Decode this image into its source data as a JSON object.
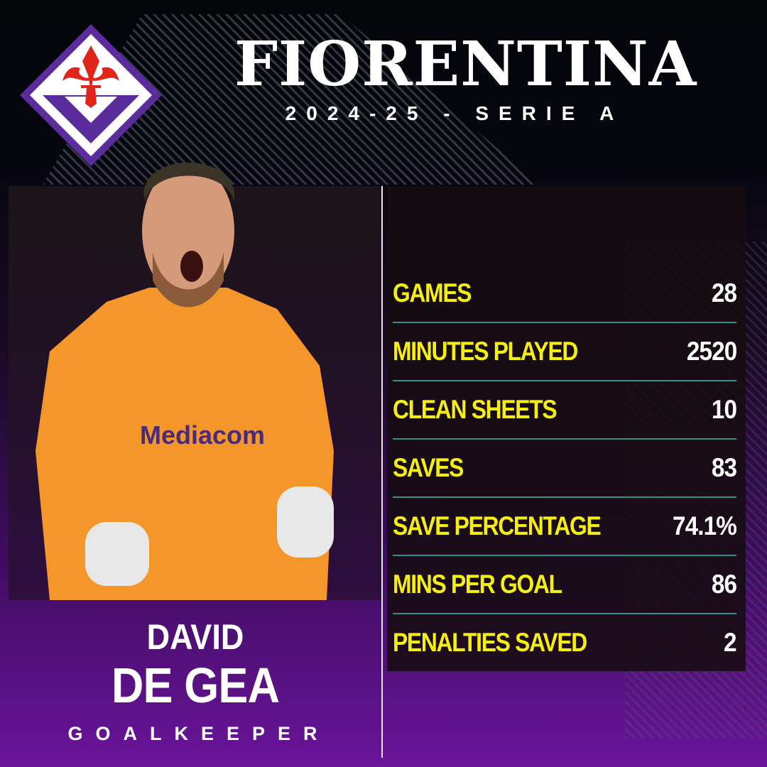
{
  "header": {
    "title": "FIORENTINA",
    "subtitle": "2024-25 - SERIE A"
  },
  "logo": {
    "name": "fiorentina-crest",
    "colors": {
      "purple": "#5b2d9c",
      "red": "#e0251b",
      "white": "#ffffff"
    }
  },
  "player": {
    "first_name": "DAVID",
    "last_name": "DE GEA",
    "position": "GOALKEEPER",
    "shirt_text": "Mediacom"
  },
  "stats": [
    {
      "label": "GAMES",
      "value": "28"
    },
    {
      "label": "MINUTES PLAYED",
      "value": "2520"
    },
    {
      "label": "CLEAN SHEETS",
      "value": "10"
    },
    {
      "label": "SAVES",
      "value": "83"
    },
    {
      "label": "SAVE PERCENTAGE",
      "value": "74.1%"
    },
    {
      "label": "MINS PER GOAL",
      "value": "86"
    },
    {
      "label": "PENALTIES SAVED",
      "value": "2"
    }
  ],
  "colors": {
    "label": "#f4ef10",
    "value": "#ffffff",
    "divider": "#2f8f8f",
    "shirt": "#f5962a"
  }
}
